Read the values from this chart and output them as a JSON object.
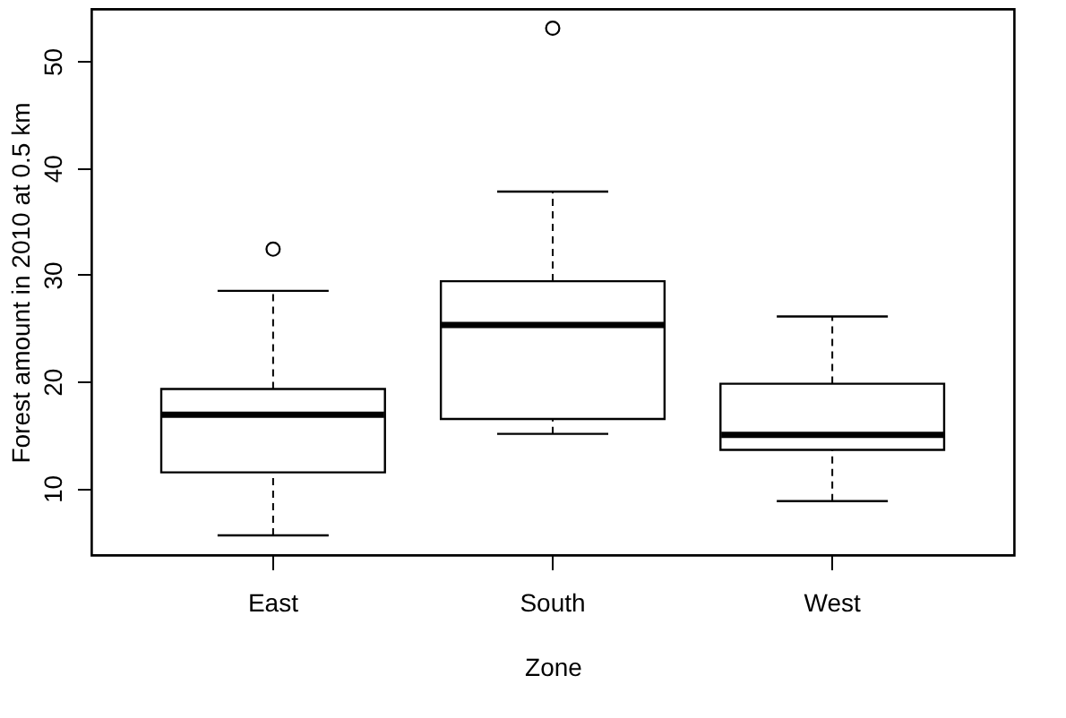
{
  "chart_data": {
    "type": "box",
    "xlabel": "Zone",
    "ylabel": "Forest amount in 2010 at 0.5 km",
    "categories": [
      "East",
      "South",
      "West"
    ],
    "boxes": [
      {
        "low": 5.6,
        "q1": 11.5,
        "median": 16.9,
        "q3": 19.3,
        "high": 28.5,
        "outliers": [
          32.4
        ]
      },
      {
        "low": 15.1,
        "q1": 16.5,
        "median": 25.3,
        "q3": 29.4,
        "high": 37.8,
        "outliers": [
          53.1
        ]
      },
      {
        "low": 8.8,
        "q1": 13.6,
        "median": 15.0,
        "q3": 19.8,
        "high": 26.1
      }
    ],
    "ylim": [
      3.75,
      54.9
    ],
    "yticks": [
      10,
      20,
      30,
      40,
      50
    ],
    "grid": false
  }
}
